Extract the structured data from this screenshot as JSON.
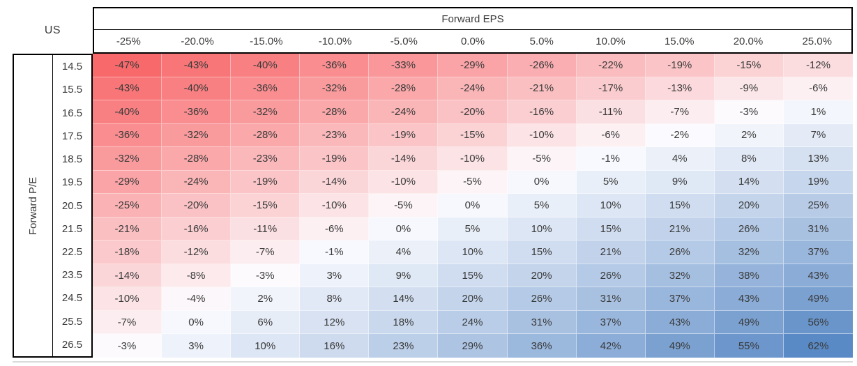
{
  "table": {
    "region_label": "US",
    "col_axis_title": "Forward EPS",
    "row_axis_title": "Forward P/E"
  },
  "chart_data": {
    "type": "heatmap",
    "corner_label": "US",
    "xlabel": "Forward EPS",
    "ylabel": "Forward P/E",
    "x_categories": [
      "-25%",
      "-20.0%",
      "-15.0%",
      "-10.0%",
      "-5.0%",
      "0.0%",
      "5.0%",
      "10.0%",
      "15.0%",
      "20.0%",
      "25.0%"
    ],
    "y_categories": [
      "14.5",
      "15.5",
      "16.5",
      "17.5",
      "18.5",
      "19.5",
      "20.5",
      "21.5",
      "22.5",
      "23.5",
      "24.5",
      "25.5",
      "26.5"
    ],
    "values": [
      [
        -47,
        -43,
        -40,
        -36,
        -33,
        -29,
        -26,
        -22,
        -19,
        -15,
        -12
      ],
      [
        -43,
        -40,
        -36,
        -32,
        -28,
        -24,
        -21,
        -17,
        -13,
        -9,
        -6
      ],
      [
        -40,
        -36,
        -32,
        -28,
        -24,
        -20,
        -16,
        -11,
        -7,
        -3,
        1
      ],
      [
        -36,
        -32,
        -28,
        -23,
        -19,
        -15,
        -10,
        -6,
        -2,
        2,
        7
      ],
      [
        -32,
        -28,
        -23,
        -19,
        -14,
        -10,
        -5,
        -1,
        4,
        8,
        13
      ],
      [
        -29,
        -24,
        -19,
        -14,
        -10,
        -5,
        0,
        5,
        9,
        14,
        19
      ],
      [
        -25,
        -20,
        -15,
        -10,
        -5,
        0,
        5,
        10,
        15,
        20,
        25
      ],
      [
        -21,
        -16,
        -11,
        -6,
        0,
        5,
        10,
        15,
        21,
        26,
        31
      ],
      [
        -18,
        -12,
        -7,
        -1,
        4,
        10,
        15,
        21,
        26,
        32,
        37
      ],
      [
        -14,
        -8,
        -3,
        3,
        9,
        15,
        20,
        26,
        32,
        38,
        43
      ],
      [
        -10,
        -4,
        2,
        8,
        14,
        20,
        26,
        31,
        37,
        43,
        49
      ],
      [
        -7,
        0,
        6,
        12,
        18,
        24,
        31,
        37,
        43,
        49,
        56
      ],
      [
        -3,
        3,
        10,
        16,
        23,
        29,
        36,
        42,
        49,
        55,
        62
      ]
    ],
    "cell_format": "{v}%",
    "grid": false,
    "legend_position": "none",
    "color_scale": {
      "min_value": -47,
      "mid_value": -2.5,
      "max_value": 62,
      "min_color": "#F8696B",
      "mid_color": "#FCFCFF",
      "max_color": "#5A8AC6"
    }
  }
}
